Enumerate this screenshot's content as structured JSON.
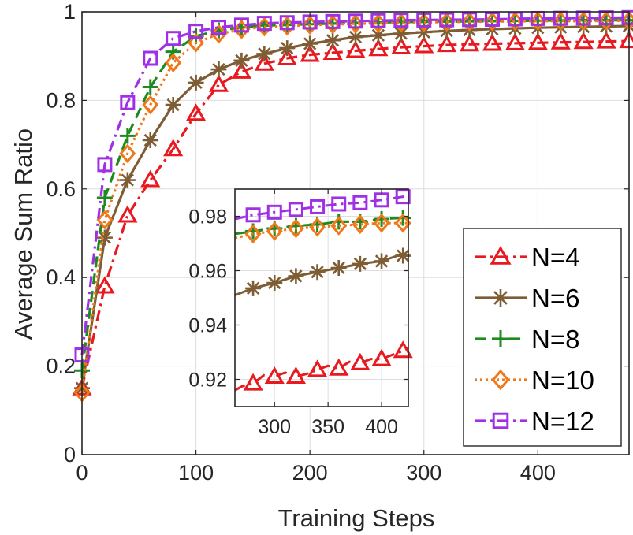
{
  "chart_data": {
    "type": "line",
    "xlabel": "Training Steps",
    "ylabel": "Average Sum Ratio",
    "xlim": [
      0,
      480
    ],
    "ylim": [
      0,
      1
    ],
    "xticks": [
      0,
      100,
      200,
      300,
      400
    ],
    "xtick_labels": [
      "0",
      "100",
      "200",
      "300",
      "400"
    ],
    "yticks": [
      0,
      0.2,
      0.4,
      0.6,
      0.8,
      1
    ],
    "ytick_labels": [
      "0",
      "0.2",
      "0.4",
      "0.6",
      "0.8",
      "1"
    ],
    "grid": true,
    "legend_position": "bottom-right",
    "marker_step": 20,
    "series": [
      {
        "name": "N=4",
        "color": "#e8191f",
        "dash": "14,6,3,6",
        "marker": "triangle",
        "points": [
          [
            0,
            0.15
          ],
          [
            20,
            0.38
          ],
          [
            40,
            0.54
          ],
          [
            60,
            0.62
          ],
          [
            80,
            0.69
          ],
          [
            100,
            0.77
          ],
          [
            120,
            0.835
          ],
          [
            140,
            0.865
          ],
          [
            160,
            0.883
          ],
          [
            180,
            0.895
          ],
          [
            200,
            0.903
          ],
          [
            240,
            0.912
          ],
          [
            280,
            0.92
          ],
          [
            320,
            0.925
          ],
          [
            360,
            0.928
          ],
          [
            400,
            0.93
          ],
          [
            440,
            0.932
          ],
          [
            480,
            0.934
          ]
        ]
      },
      {
        "name": "N=6",
        "color": "#7e5d35",
        "dash": "",
        "marker": "asterisk",
        "points": [
          [
            0,
            0.15
          ],
          [
            20,
            0.49
          ],
          [
            40,
            0.62
          ],
          [
            60,
            0.71
          ],
          [
            80,
            0.79
          ],
          [
            100,
            0.84
          ],
          [
            120,
            0.87
          ],
          [
            140,
            0.89
          ],
          [
            160,
            0.905
          ],
          [
            180,
            0.918
          ],
          [
            200,
            0.928
          ],
          [
            240,
            0.943
          ],
          [
            280,
            0.951
          ],
          [
            320,
            0.957
          ],
          [
            360,
            0.961
          ],
          [
            400,
            0.964
          ],
          [
            440,
            0.966
          ],
          [
            480,
            0.968
          ]
        ]
      },
      {
        "name": "N=8",
        "color": "#1f8a1f",
        "dash": "14,8",
        "marker": "plus",
        "points": [
          [
            0,
            0.19
          ],
          [
            20,
            0.58
          ],
          [
            40,
            0.72
          ],
          [
            60,
            0.83
          ],
          [
            80,
            0.91
          ],
          [
            100,
            0.945
          ],
          [
            120,
            0.958
          ],
          [
            140,
            0.965
          ],
          [
            160,
            0.969
          ],
          [
            200,
            0.972
          ],
          [
            240,
            0.975
          ],
          [
            280,
            0.977
          ],
          [
            320,
            0.978
          ],
          [
            360,
            0.979
          ],
          [
            400,
            0.98
          ],
          [
            440,
            0.981
          ],
          [
            480,
            0.981
          ]
        ]
      },
      {
        "name": "N=10",
        "color": "#f07818",
        "dash": "3,4",
        "marker": "diamond",
        "points": [
          [
            0,
            0.14
          ],
          [
            20,
            0.53
          ],
          [
            40,
            0.68
          ],
          [
            60,
            0.79
          ],
          [
            80,
            0.885
          ],
          [
            100,
            0.93
          ],
          [
            120,
            0.95
          ],
          [
            140,
            0.96
          ],
          [
            160,
            0.966
          ],
          [
            200,
            0.97
          ],
          [
            240,
            0.973
          ],
          [
            280,
            0.975
          ],
          [
            320,
            0.977
          ],
          [
            360,
            0.978
          ],
          [
            400,
            0.979
          ],
          [
            440,
            0.979
          ],
          [
            480,
            0.98
          ]
        ]
      },
      {
        "name": "N=12",
        "color": "#a030e6",
        "dash": "14,6,3,6",
        "marker": "square",
        "points": [
          [
            0,
            0.225
          ],
          [
            20,
            0.655
          ],
          [
            40,
            0.795
          ],
          [
            60,
            0.895
          ],
          [
            80,
            0.94
          ],
          [
            100,
            0.956
          ],
          [
            120,
            0.965
          ],
          [
            140,
            0.97
          ],
          [
            160,
            0.974
          ],
          [
            200,
            0.977
          ],
          [
            240,
            0.979
          ],
          [
            280,
            0.981
          ],
          [
            320,
            0.982
          ],
          [
            360,
            0.983
          ],
          [
            400,
            0.985
          ],
          [
            440,
            0.986
          ],
          [
            480,
            0.987
          ]
        ]
      }
    ],
    "inset": {
      "xlim": [
        263,
        425
      ],
      "ylim": [
        0.91,
        0.99
      ],
      "xticks": [
        300,
        350,
        400
      ],
      "xtick_labels": [
        "300",
        "350",
        "400"
      ],
      "yticks": [
        0.92,
        0.94,
        0.96,
        0.98
      ],
      "ytick_labels": [
        "0.92",
        "0.94",
        "0.96",
        "0.98"
      ],
      "marker_step": 20,
      "series": [
        {
          "name": "N=4",
          "points": [
            [
              263,
              0.916
            ],
            [
              270,
              0.9175
            ],
            [
              280,
              0.9185
            ],
            [
              290,
              0.9215
            ],
            [
              300,
              0.921
            ],
            [
              310,
              0.9225
            ],
            [
              320,
              0.921
            ],
            [
              330,
              0.922
            ],
            [
              340,
              0.9235
            ],
            [
              350,
              0.925
            ],
            [
              360,
              0.924
            ],
            [
              370,
              0.9265
            ],
            [
              380,
              0.926
            ],
            [
              390,
              0.9275
            ],
            [
              400,
              0.9275
            ],
            [
              410,
              0.929
            ],
            [
              420,
              0.9305
            ],
            [
              425,
              0.9315
            ]
          ]
        },
        {
          "name": "N=6",
          "points": [
            [
              263,
              0.951
            ],
            [
              280,
              0.9535
            ],
            [
              300,
              0.9555
            ],
            [
              320,
              0.958
            ],
            [
              340,
              0.9595
            ],
            [
              360,
              0.961
            ],
            [
              380,
              0.9625
            ],
            [
              400,
              0.9635
            ],
            [
              415,
              0.9655
            ],
            [
              425,
              0.9655
            ]
          ]
        },
        {
          "name": "N=8",
          "points": [
            [
              263,
              0.9735
            ],
            [
              280,
              0.9745
            ],
            [
              300,
              0.9755
            ],
            [
              320,
              0.9765
            ],
            [
              340,
              0.977
            ],
            [
              360,
              0.978
            ],
            [
              380,
              0.978
            ],
            [
              400,
              0.979
            ],
            [
              425,
              0.9795
            ]
          ]
        },
        {
          "name": "N=10",
          "points": [
            [
              263,
              0.972
            ],
            [
              280,
              0.9735
            ],
            [
              300,
              0.9745
            ],
            [
              320,
              0.9755
            ],
            [
              340,
              0.976
            ],
            [
              360,
              0.9765
            ],
            [
              380,
              0.977
            ],
            [
              400,
              0.9775
            ],
            [
              425,
              0.9775
            ]
          ]
        },
        {
          "name": "N=12",
          "points": [
            [
              263,
              0.979
            ],
            [
              280,
              0.9805
            ],
            [
              300,
              0.9815
            ],
            [
              320,
              0.9825
            ],
            [
              340,
              0.9835
            ],
            [
              360,
              0.9845
            ],
            [
              380,
              0.985
            ],
            [
              400,
              0.986
            ],
            [
              425,
              0.9875
            ]
          ]
        }
      ]
    }
  }
}
